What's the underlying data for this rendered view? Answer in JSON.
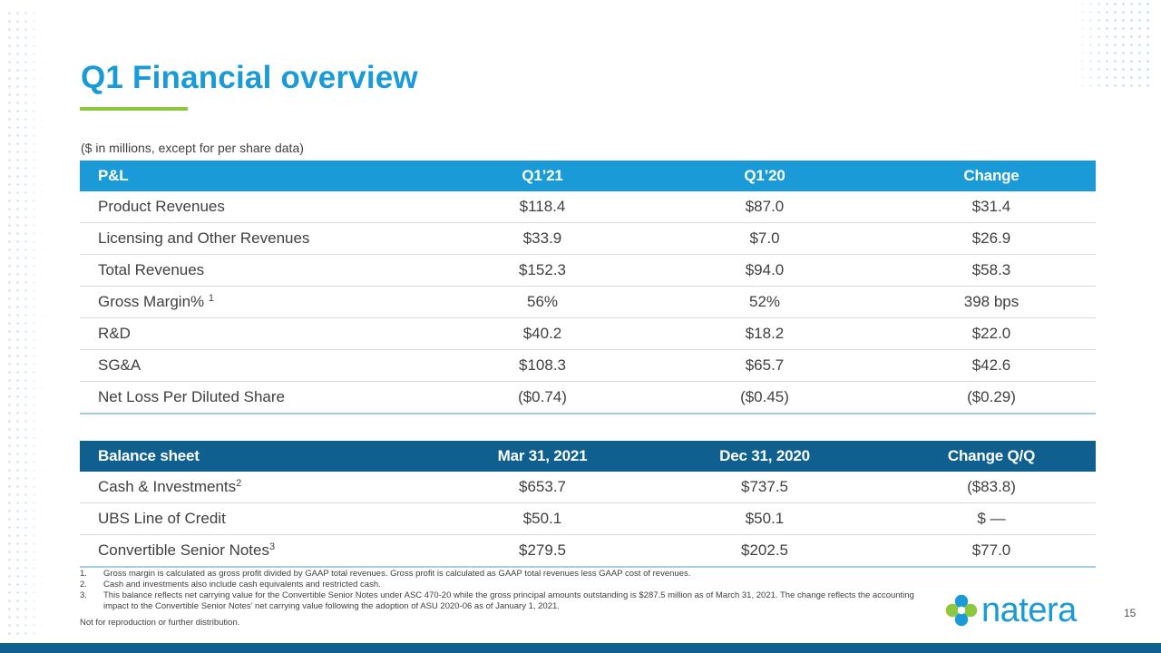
{
  "title": "Q1 Financial overview",
  "units_note": "($ in millions, except for per share data)",
  "pl_table": {
    "headers": [
      "P&L",
      "Q1’21",
      "Q1’20",
      "Change"
    ],
    "rows": [
      {
        "label": "Product Revenues",
        "sup": "",
        "q1_21": "$118.4",
        "q1_20": "$87.0",
        "change": "$31.4"
      },
      {
        "label": "Licensing and Other Revenues",
        "sup": "",
        "q1_21": "$33.9",
        "q1_20": "$7.0",
        "change": "$26.9"
      },
      {
        "label": "Total Revenues",
        "sup": "",
        "q1_21": "$152.3",
        "q1_20": "$94.0",
        "change": "$58.3"
      },
      {
        "label": "Gross Margin% ",
        "sup": "1",
        "q1_21": "56%",
        "q1_20": "52%",
        "change": "398 bps"
      },
      {
        "label": "R&D",
        "sup": "",
        "q1_21": "$40.2",
        "q1_20": "$18.2",
        "change": "$22.0"
      },
      {
        "label": "SG&A",
        "sup": "",
        "q1_21": "$108.3",
        "q1_20": "$65.7",
        "change": "$42.6"
      },
      {
        "label": "Net Loss Per Diluted Share",
        "sup": "",
        "q1_21": "($0.74)",
        "q1_20": "($0.45)",
        "change": "($0.29)"
      }
    ]
  },
  "bs_table": {
    "headers": [
      "Balance sheet",
      "Mar 31, 2021",
      "Dec 31, 2020",
      "Change Q/Q"
    ],
    "rows": [
      {
        "label": "Cash & Investments",
        "sup": "2",
        "mar_2021": "$653.7",
        "dec_2020": "$737.5",
        "change": "($83.8)"
      },
      {
        "label": "UBS Line of Credit",
        "sup": "",
        "mar_2021": "$50.1",
        "dec_2020": "$50.1",
        "change": "$ —"
      },
      {
        "label": "Convertible Senior Notes",
        "sup": "3",
        "mar_2021": "$279.5",
        "dec_2020": "$202.5",
        "change": "$77.0"
      }
    ]
  },
  "footnotes": [
    {
      "num": "1.",
      "text": "Gross margin is calculated as gross profit divided by GAAP total revenues. Gross profit is calculated as GAAP total revenues less GAAP cost of revenues."
    },
    {
      "num": "2.",
      "text": "Cash and investments also include cash equivalents and restricted cash."
    },
    {
      "num": "3.",
      "text": "This balance reflects net carrying value for the Convertible Senior Notes under ASC 470-20 while the gross principal amounts outstanding is $287.5 million  as of March 31, 2021. The change reflects the accounting impact to the Convertible Senior Notes’ net carrying value following the adoption of ASU 2020-06 as of January 1, 2021."
    }
  ],
  "disclaimer": "Not  for reproduction or further distribution.",
  "logo": {
    "text": "natera",
    "icon": "natera-flower-icon"
  },
  "page_number": "15",
  "colors": {
    "primary_blue": "#1a9ad6",
    "dark_blue": "#0f5f8f",
    "green": "#8dc63f"
  }
}
